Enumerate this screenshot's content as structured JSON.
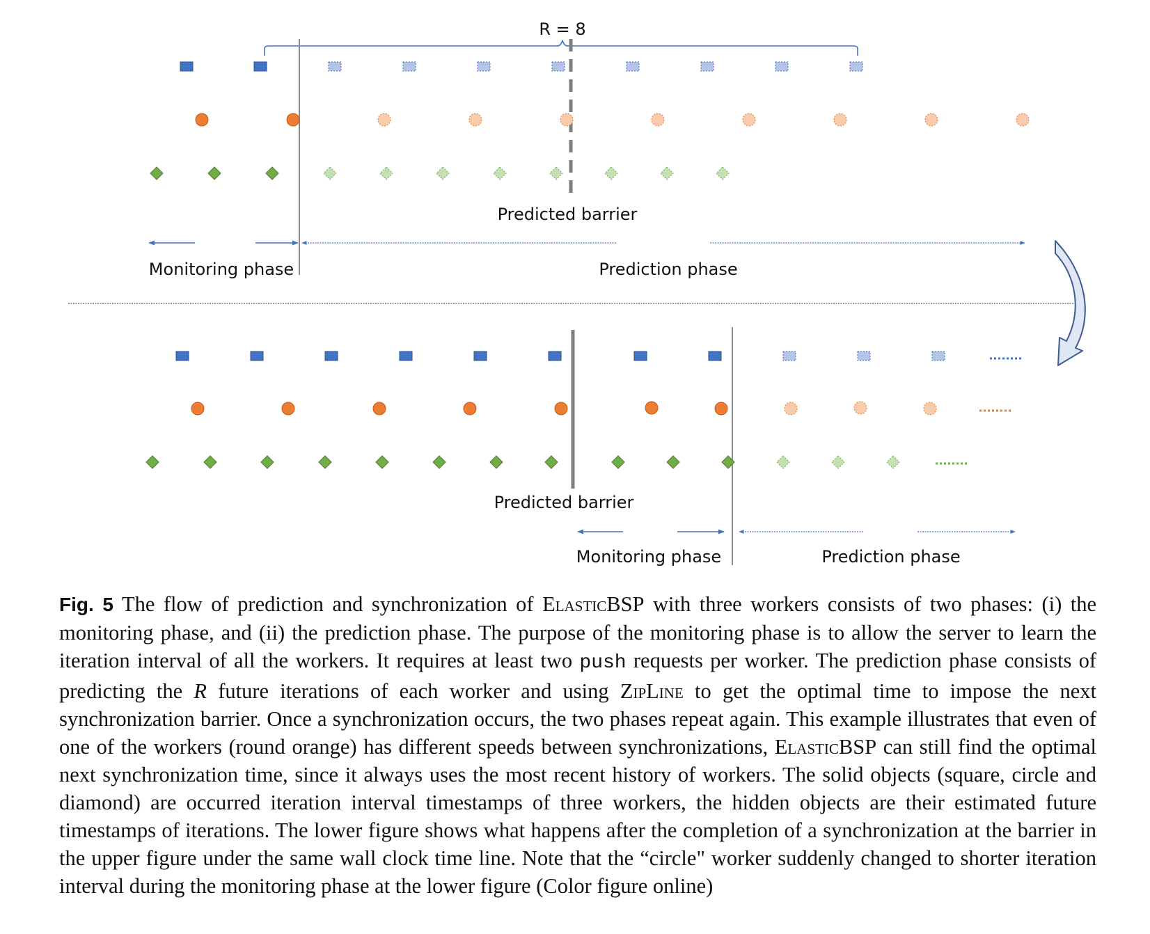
{
  "top": {
    "r_label": "R = 8",
    "predicted_barrier": "Predicted barrier",
    "monitoring_phase": "Monitoring phase",
    "prediction_phase": "Prediction phase"
  },
  "bottom": {
    "predicted_barrier": "Predicted barrier",
    "monitoring_phase": "Monitoring phase",
    "prediction_phase": "Prediction phase"
  },
  "colors": {
    "square": "#4472c4",
    "square_predicted": "#b4c4e8",
    "circle": "#ed7d31",
    "circle_predicted": "#f8cbad",
    "diamond": "#70ad47",
    "diamond_predicted": "#c5e0b4",
    "arrow": "#4472c4",
    "barrier": "#7f7f7f"
  },
  "caption": {
    "fig_label": "Fig. 5",
    "t1": " The flow of prediction and synchronization of ",
    "elastic1": "ElasticBSP",
    "t2": " with three workers consists of two phases: (i) the monitoring phase, and (ii) the prediction phase. The purpose of the monitoring phase is to allow the server to learn the iteration interval of all the workers. It requires at least two ",
    "push": "push",
    "t3": " requests per worker. The prediction phase consists of predicting the ",
    "r": "R",
    "t4": " future iterations of each worker and using ",
    "zipline": "ZipLine",
    "t5": " to get the optimal time to impose the next synchronization barrier. Once a synchronization occurs, the two phases repeat again. This example illustrates that even of one of the workers (round orange) has different speeds between synchronizations, ",
    "elastic2": "ElasticBSP",
    "t6": " can still find the optimal next synchronization time, since it always uses the most recent history of workers. The solid objects (square, circle and diamond) are occurred iteration interval timestamps of three workers, the hidden objects are their estimated future timestamps of iterations. The lower figure shows what happens after the completion of a synchronization at the barrier in the upper figure under the same wall clock time line. Note that the “circle\" worker suddenly changed to shorter iteration interval during the monitoring phase at the lower figure (Color figure online)"
  }
}
